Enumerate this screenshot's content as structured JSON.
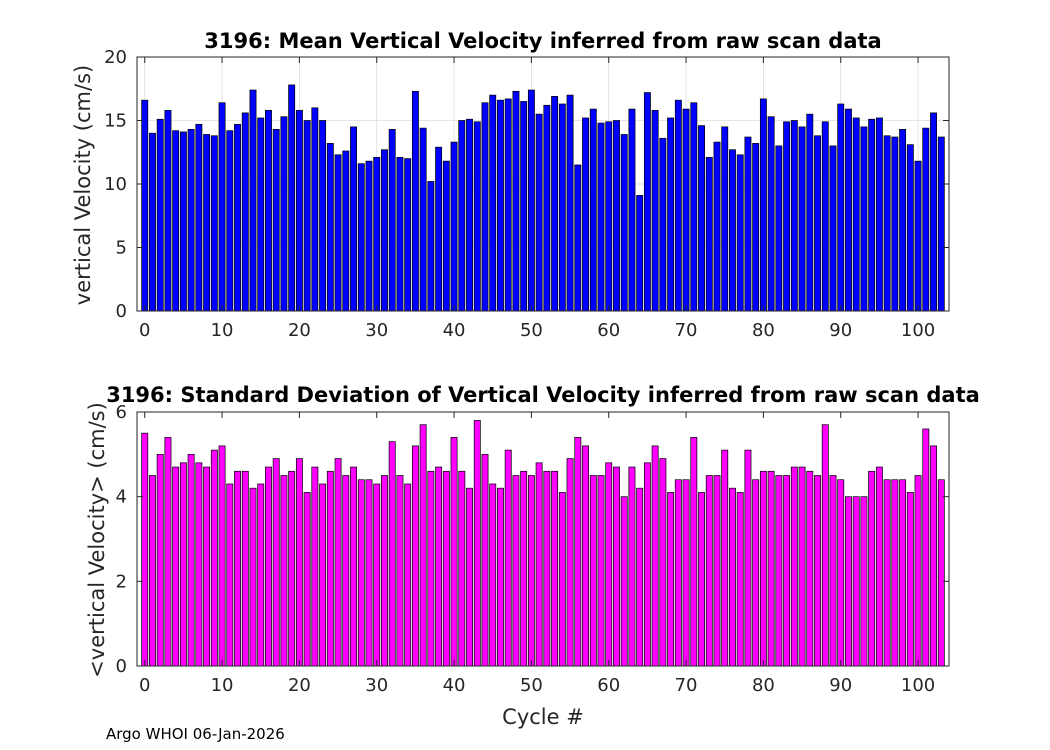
{
  "footer": "Argo WHOI 06-Jan-2026",
  "chart_data": [
    {
      "type": "bar",
      "title": "3196: Mean Vertical Velocity inferred from raw scan data",
      "xlabel": "",
      "ylabel": "vertical Velocity (cm/s)",
      "xlim": [
        -1,
        104
      ],
      "ylim": [
        0,
        20
      ],
      "xticks": [
        0,
        10,
        20,
        30,
        40,
        50,
        60,
        70,
        80,
        90,
        100
      ],
      "yticks": [
        0,
        5,
        10,
        15,
        20
      ],
      "grid": true,
      "bar_color": "#0000ff",
      "x": [
        0,
        1,
        2,
        3,
        4,
        5,
        6,
        7,
        8,
        9,
        10,
        11,
        12,
        13,
        14,
        15,
        16,
        17,
        18,
        19,
        20,
        21,
        22,
        23,
        24,
        25,
        26,
        27,
        28,
        29,
        30,
        31,
        32,
        33,
        34,
        35,
        36,
        37,
        38,
        39,
        40,
        41,
        42,
        43,
        44,
        45,
        46,
        47,
        48,
        49,
        50,
        51,
        52,
        53,
        54,
        55,
        56,
        57,
        58,
        59,
        60,
        61,
        62,
        63,
        64,
        65,
        66,
        67,
        68,
        69,
        70,
        71,
        72,
        73,
        74,
        75,
        76,
        77,
        78,
        79,
        80,
        81,
        82,
        83,
        84,
        85,
        86,
        87,
        88,
        89,
        90,
        91,
        92,
        93,
        94,
        95,
        96,
        97,
        98,
        99,
        100,
        101,
        102,
        103
      ],
      "values": [
        16.6,
        14.0,
        15.1,
        15.8,
        14.2,
        14.1,
        14.3,
        14.7,
        13.9,
        13.8,
        16.4,
        14.2,
        14.7,
        15.6,
        17.4,
        15.2,
        15.8,
        14.3,
        15.3,
        17.8,
        15.8,
        15.0,
        16.0,
        15.0,
        13.2,
        12.3,
        12.6,
        14.5,
        11.6,
        11.8,
        12.1,
        12.7,
        14.3,
        12.1,
        12.0,
        17.3,
        14.4,
        10.2,
        12.9,
        11.8,
        13.3,
        15.0,
        15.1,
        14.9,
        16.4,
        17.0,
        16.6,
        16.7,
        17.3,
        16.5,
        17.4,
        15.5,
        16.2,
        16.9,
        16.3,
        17.0,
        11.5,
        15.2,
        15.9,
        14.8,
        14.9,
        15.0,
        13.9,
        15.9,
        9.1,
        17.2,
        15.8,
        13.6,
        15.2,
        16.6,
        15.9,
        16.4,
        14.6,
        12.1,
        13.3,
        14.5,
        12.7,
        12.3,
        13.7,
        13.2,
        16.7,
        15.3,
        13.0,
        14.9,
        15.0,
        14.5,
        15.5,
        13.8,
        14.9,
        13.0,
        16.3,
        15.9,
        15.2,
        14.5,
        15.1,
        15.2,
        13.8,
        13.7,
        14.3,
        13.1,
        11.8,
        14.4,
        15.6,
        13.7
      ]
    },
    {
      "type": "bar",
      "title": "3196: Standard Deviation of Vertical Velocity inferred from raw scan data",
      "xlabel": "Cycle #",
      "ylabel": "<vertical Velocity> (cm/s)",
      "xlim": [
        -1,
        104
      ],
      "ylim": [
        0,
        6
      ],
      "xticks": [
        0,
        10,
        20,
        30,
        40,
        50,
        60,
        70,
        80,
        90,
        100
      ],
      "yticks": [
        0,
        2,
        4,
        6
      ],
      "grid": false,
      "bar_color": "#ff00ff",
      "x": [
        0,
        1,
        2,
        3,
        4,
        5,
        6,
        7,
        8,
        9,
        10,
        11,
        12,
        13,
        14,
        15,
        16,
        17,
        18,
        19,
        20,
        21,
        22,
        23,
        24,
        25,
        26,
        27,
        28,
        29,
        30,
        31,
        32,
        33,
        34,
        35,
        36,
        37,
        38,
        39,
        40,
        41,
        42,
        43,
        44,
        45,
        46,
        47,
        48,
        49,
        50,
        51,
        52,
        53,
        54,
        55,
        56,
        57,
        58,
        59,
        60,
        61,
        62,
        63,
        64,
        65,
        66,
        67,
        68,
        69,
        70,
        71,
        72,
        73,
        74,
        75,
        76,
        77,
        78,
        79,
        80,
        81,
        82,
        83,
        84,
        85,
        86,
        87,
        88,
        89,
        90,
        91,
        92,
        93,
        94,
        95,
        96,
        97,
        98,
        99,
        100,
        101,
        102,
        103
      ],
      "values": [
        5.5,
        4.5,
        5.0,
        5.4,
        4.7,
        4.8,
        5.0,
        4.8,
        4.7,
        5.1,
        5.2,
        4.3,
        4.6,
        4.6,
        4.2,
        4.3,
        4.7,
        4.9,
        4.5,
        4.6,
        4.9,
        4.1,
        4.7,
        4.3,
        4.6,
        4.9,
        4.5,
        4.7,
        4.4,
        4.4,
        4.3,
        4.5,
        5.3,
        4.5,
        4.3,
        5.2,
        5.7,
        4.6,
        4.7,
        4.6,
        5.4,
        4.6,
        4.2,
        5.8,
        5.0,
        4.3,
        4.2,
        5.1,
        4.5,
        4.6,
        4.5,
        4.8,
        4.6,
        4.6,
        4.1,
        4.9,
        5.4,
        5.2,
        4.5,
        4.5,
        4.8,
        4.7,
        4.0,
        4.7,
        4.2,
        4.8,
        5.2,
        4.9,
        4.1,
        4.4,
        4.4,
        5.4,
        4.1,
        4.5,
        4.5,
        5.1,
        4.2,
        4.1,
        5.1,
        4.4,
        4.6,
        4.6,
        4.5,
        4.5,
        4.7,
        4.7,
        4.6,
        4.5,
        5.7,
        4.5,
        4.4,
        4.0,
        4.0,
        4.0,
        4.6,
        4.7,
        4.4,
        4.4,
        4.4,
        4.1,
        4.5,
        5.6,
        5.2,
        4.4
      ]
    }
  ]
}
